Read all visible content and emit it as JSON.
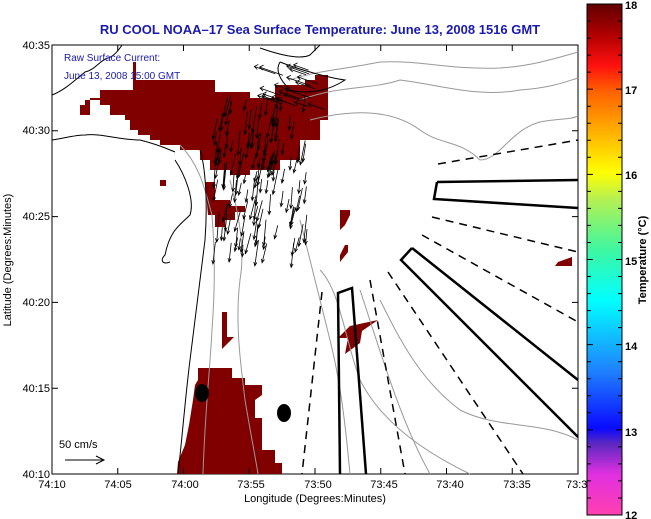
{
  "title": "RU COOL  NOAA–17  Sea Surface Temperature:  June 13, 2008 1516 GMT",
  "annotation": {
    "line1": "Raw Surface Current:",
    "line2": "June 13, 2008 15:00 GMT",
    "scale_label": "50 cm/s"
  },
  "axes": {
    "xlabel": "Longitude (Degrees:Minutes)",
    "ylabel": "Latitude (Degrees:Minutes)",
    "xticks": [
      "74:10",
      "74:05",
      "74:00",
      "73:55",
      "73:50",
      "73:45",
      "73:40",
      "73:35",
      "73:3"
    ],
    "yticks": [
      "40:35",
      "40:30",
      "40:25",
      "40:20",
      "40:15",
      "40:10"
    ]
  },
  "colorbar": {
    "label": "Temperature (°C)",
    "ticks": [
      "18",
      "17",
      "16",
      "15",
      "14",
      "13",
      "12"
    ],
    "range": [
      12,
      18
    ]
  },
  "colors": {
    "sst_patch": "#800000",
    "title": "#1a1ab0",
    "contour": "#999999"
  }
}
